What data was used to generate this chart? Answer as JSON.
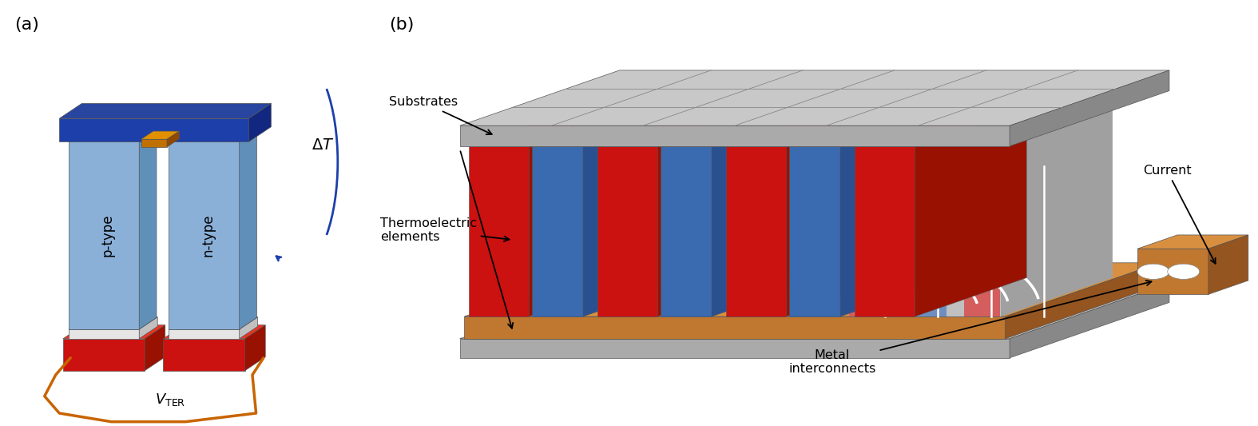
{
  "fig_width": 15.75,
  "fig_height": 5.33,
  "dpi": 100,
  "bg_color": "#ffffff",
  "label_a": "(a)",
  "label_b": "(b)",
  "label_fontsize": 16,
  "p_type_label": "p-type",
  "n_type_label": "n-type",
  "blue_dark": "#1c3faa",
  "blue_light": "#8ab0d8",
  "blue_mid": "#4a7abf",
  "blue_pillar_face": "#3a6aaf",
  "blue_pillar_side": "#2a5090",
  "blue_pillar_top": "#6090cf",
  "red_face": "#cc1111",
  "red_side": "#991100",
  "red_top": "#ee3322",
  "orange_wire": "#c86400",
  "copper_face": "#c07830",
  "copper_side": "#955520",
  "copper_top": "#d89040",
  "gray_face": "#aaaaaa",
  "gray_side": "#888888",
  "gray_top": "#c8c8c8",
  "gray_mid": "#b0b0b0",
  "white_conn": "#e8e8e8",
  "white_conn_side": "#c0c0c0"
}
